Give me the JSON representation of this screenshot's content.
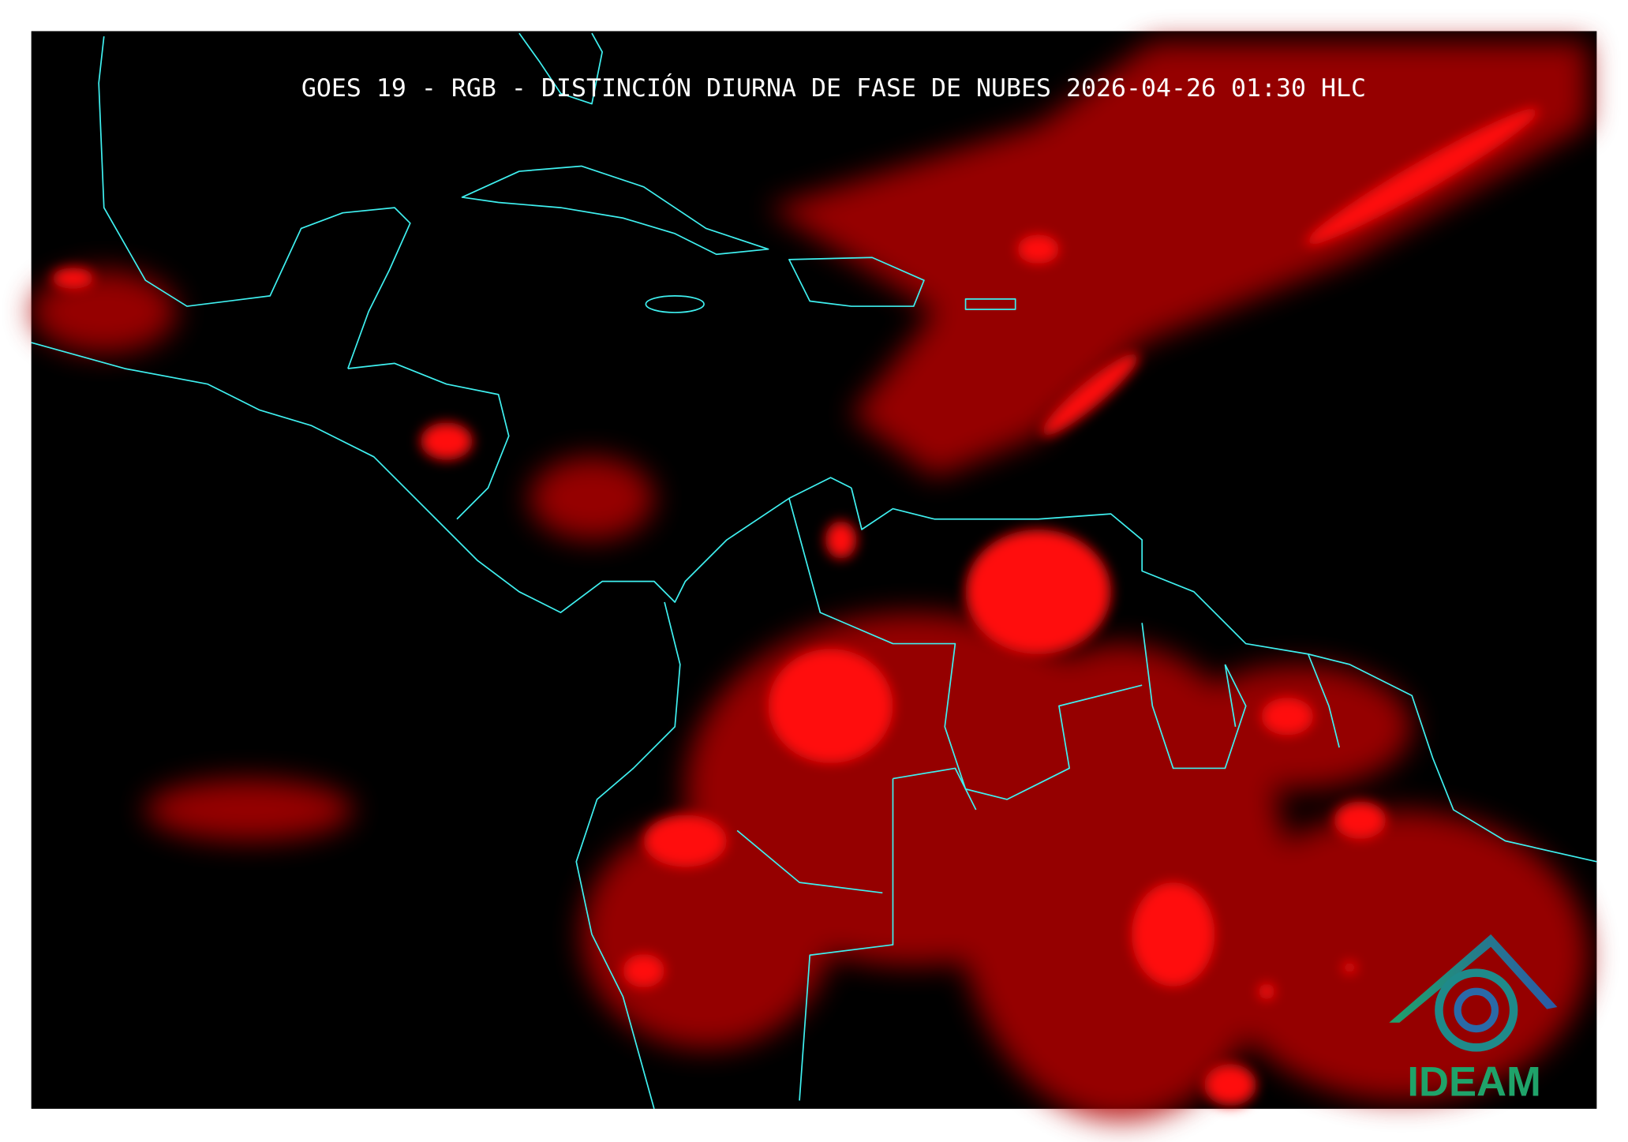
{
  "map": {
    "title": "GOES 19 - RGB - DISTINCIÓN DIURNA DE FASE DE NUBES 2026-04-26 01:30 HLC"
  },
  "logo": {
    "text": "IDEAM"
  }
}
